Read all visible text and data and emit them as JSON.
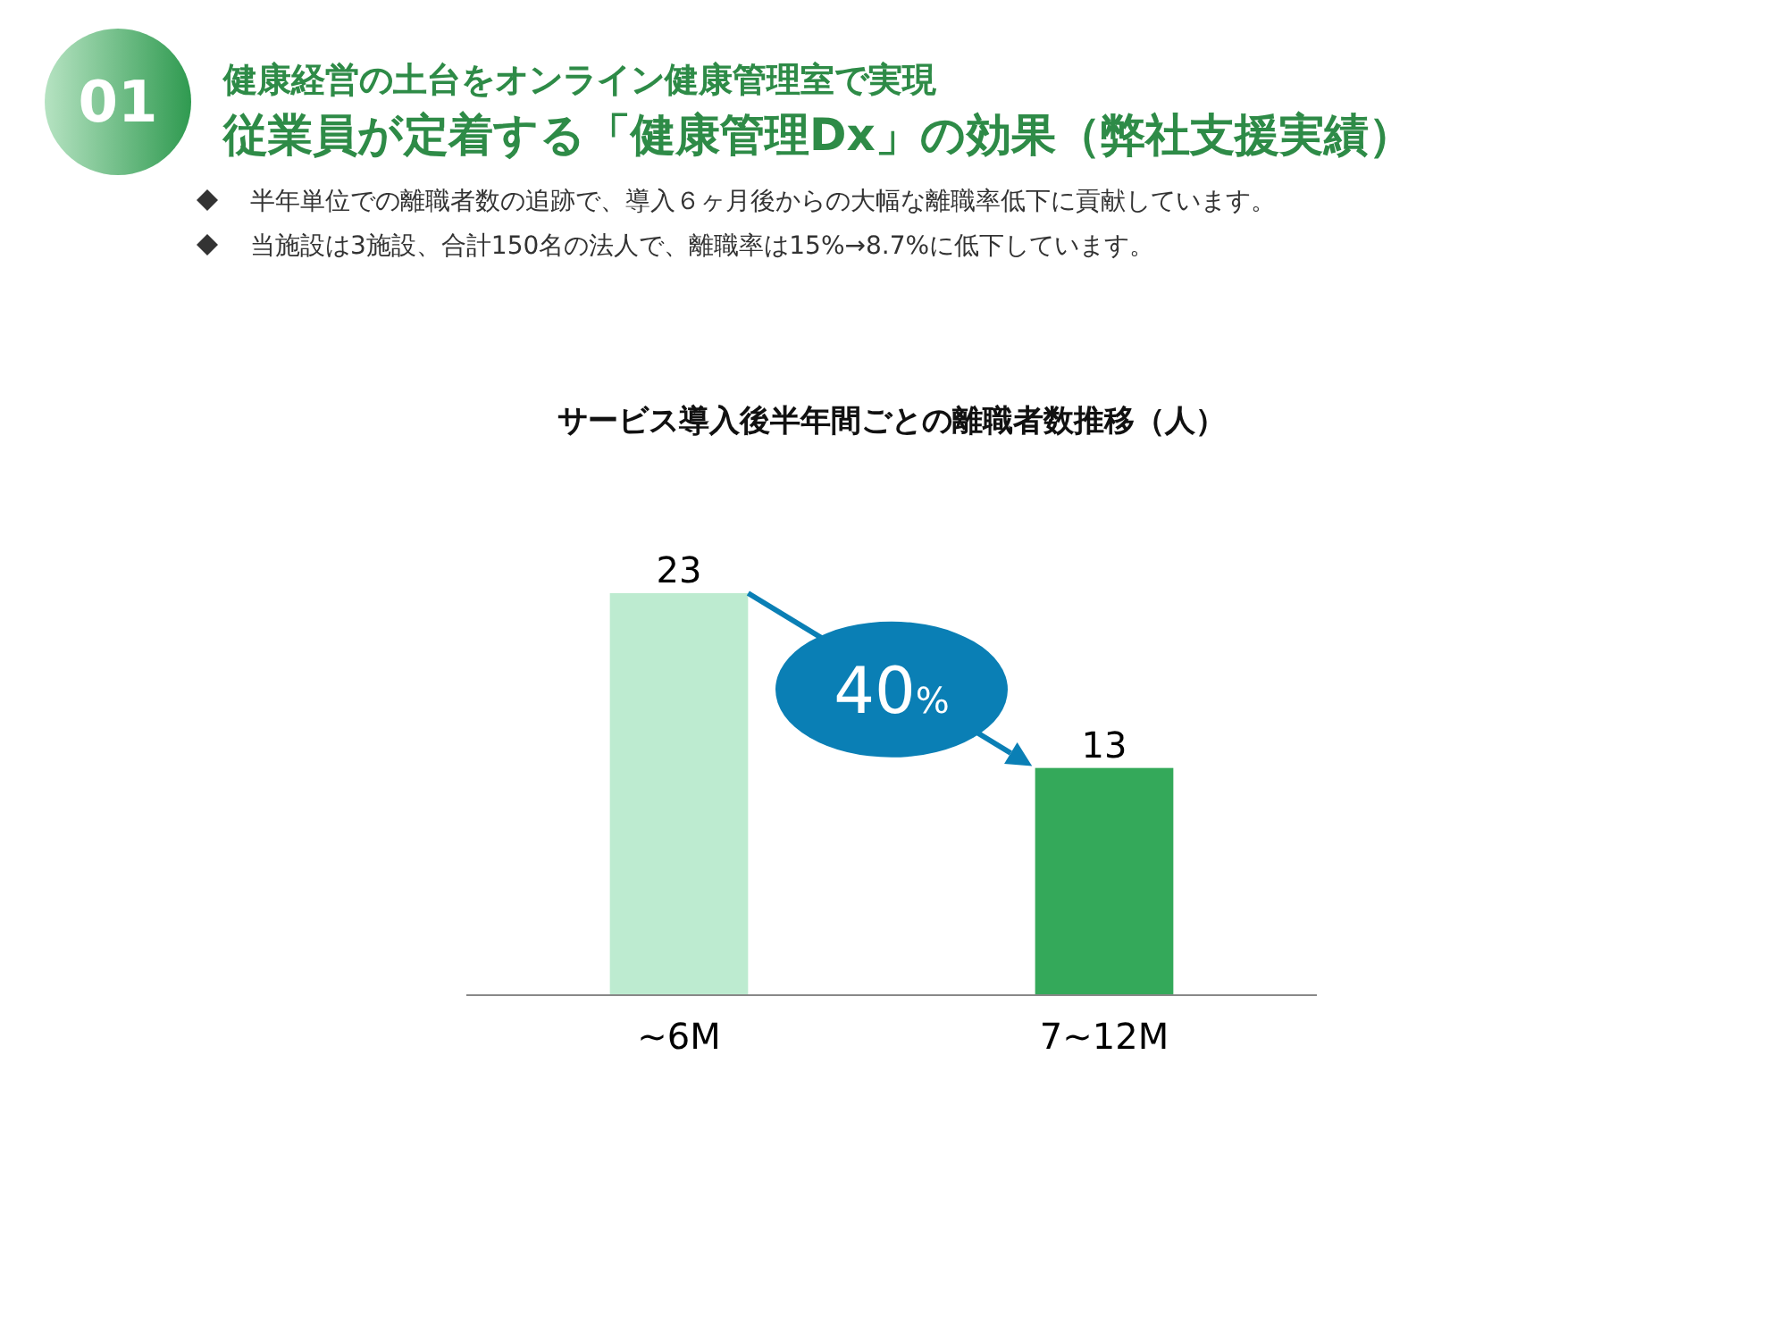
{
  "chart_data": {
    "type": "bar",
    "title": "従業員が定着する「健康管理Dx」の効果（弊社支援実績）",
    "subtitle": "健康経営の土台をオンライン健康管理室で実現",
    "annotations": [
      "01",
      "半年単位での離職者数の追跡で、導入６ヶ月後からの大幅な離職率低下に貢献しています。",
      "当施設は3施設、合計150名の法人で、離職率は15%→8.7%に低下しています。",
      "サービス導入後半年間ごとの離職者数推移（人）",
      "40%"
    ],
    "categories": [
      "~6M",
      "7~12M"
    ],
    "values": [
      23,
      13
    ],
    "colors": [
      "#bdebd0",
      "#34a95a"
    ],
    "data_labels": true
  }
}
